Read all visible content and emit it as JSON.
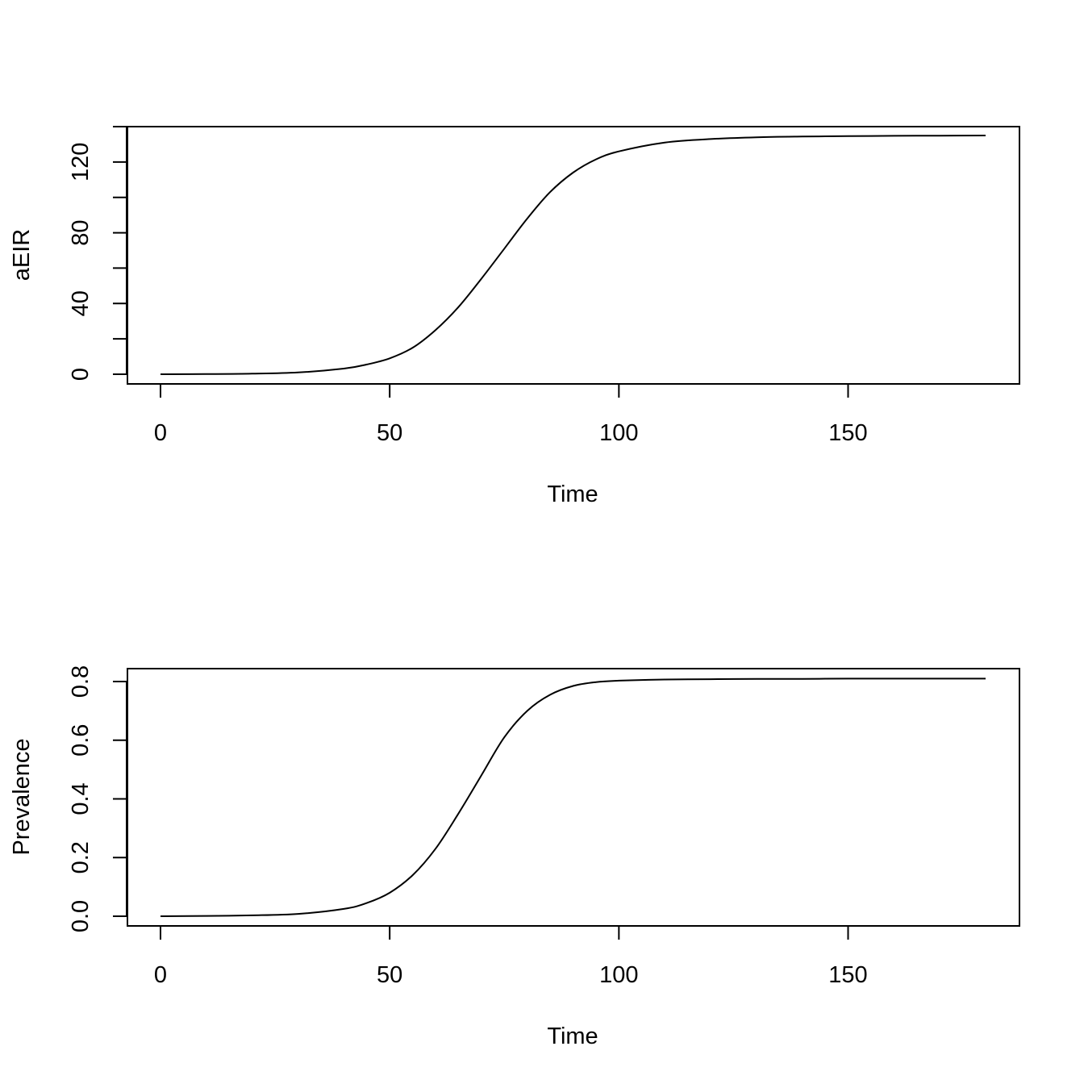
{
  "chart_data": [
    {
      "type": "line",
      "title": "",
      "xlabel": "Time",
      "ylabel": "aEIR",
      "xlim": [
        0,
        180
      ],
      "ylim": [
        0,
        135
      ],
      "x_ticks": [
        0,
        50,
        100,
        150
      ],
      "x_tick_labels": [
        "0",
        "50",
        "100",
        "150"
      ],
      "y_ticks": [
        0,
        20,
        40,
        60,
        80,
        100,
        120,
        140
      ],
      "y_labeled_ticks": [
        0,
        40,
        80,
        120
      ],
      "y_tick_labels": [
        "0",
        "40",
        "80",
        "120"
      ],
      "grid": false,
      "series": [
        {
          "x": [
            0,
            10,
            20,
            30,
            40,
            45,
            50,
            55,
            60,
            65,
            70,
            75,
            80,
            85,
            90,
            95,
            100,
            110,
            120,
            130,
            140,
            150,
            160,
            170,
            180
          ],
          "y": [
            0,
            0.1,
            0.3,
            1.0,
            3.2,
            5.5,
            9.0,
            15.0,
            25.0,
            38.0,
            54.0,
            71.0,
            88.0,
            103.0,
            114.0,
            121.5,
            126.0,
            131.0,
            133.0,
            134.0,
            134.4,
            134.6,
            134.8,
            134.9,
            135.0
          ]
        }
      ]
    },
    {
      "type": "line",
      "title": "",
      "xlabel": "Time",
      "ylabel": "Prevalence",
      "xlim": [
        0,
        180
      ],
      "ylim": [
        0,
        0.81
      ],
      "x_ticks": [
        0,
        50,
        100,
        150
      ],
      "x_tick_labels": [
        "0",
        "50",
        "100",
        "150"
      ],
      "y_ticks": [
        0,
        0.2,
        0.4,
        0.6,
        0.8
      ],
      "y_labeled_ticks": [
        0,
        0.2,
        0.4,
        0.6,
        0.8
      ],
      "y_tick_labels": [
        "0.0",
        "0.2",
        "0.4",
        "0.6",
        "0.8"
      ],
      "grid": false,
      "series": [
        {
          "x": [
            0,
            10,
            20,
            30,
            40,
            45,
            50,
            55,
            60,
            65,
            70,
            75,
            80,
            85,
            90,
            95,
            100,
            110,
            120,
            130,
            140,
            150,
            160,
            170,
            180
          ],
          "y": [
            0,
            0.001,
            0.003,
            0.008,
            0.025,
            0.045,
            0.08,
            0.14,
            0.23,
            0.35,
            0.48,
            0.61,
            0.7,
            0.755,
            0.785,
            0.798,
            0.803,
            0.807,
            0.808,
            0.809,
            0.809,
            0.81,
            0.81,
            0.81,
            0.81
          ]
        }
      ]
    }
  ]
}
